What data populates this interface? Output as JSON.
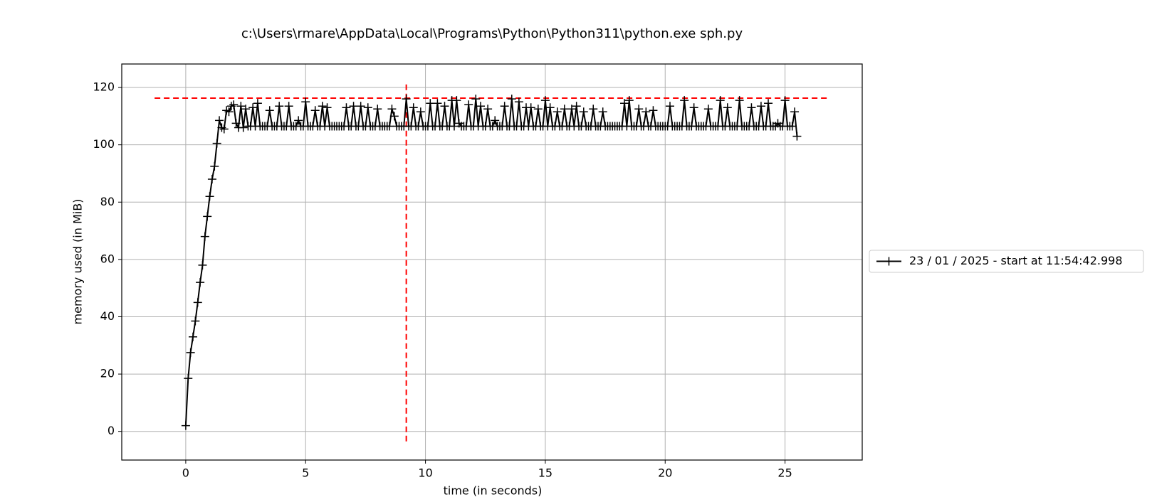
{
  "chart_data": {
    "type": "line",
    "title": "c:\\Users\\rmare\\AppData\\Local\\Programs\\Python\\Python311\\python.exe sph.py",
    "xlabel": "time (in seconds)",
    "ylabel": "memory used (in MiB)",
    "x": [
      0,
      0.1,
      0.2,
      0.3,
      0.4,
      0.5,
      0.6,
      0.7,
      0.8,
      0.9,
      1,
      1.1,
      1.2,
      1.3,
      1.4,
      1.5,
      1.6,
      1.7,
      1.8,
      1.9,
      2,
      2.1,
      2.2,
      2.3,
      2.4,
      2.5,
      2.6,
      2.7,
      2.8,
      2.9,
      3,
      3.1,
      3.2,
      3.3,
      3.4,
      3.5,
      3.6,
      3.7,
      3.8,
      3.9,
      4,
      4.1,
      4.2,
      4.3,
      4.4,
      4.5,
      4.6,
      4.7,
      4.8,
      4.9,
      5,
      5.1,
      5.2,
      5.3,
      5.4,
      5.5,
      5.6,
      5.7,
      5.8,
      5.9,
      6,
      6.1,
      6.2,
      6.3,
      6.4,
      6.5,
      6.6,
      6.7,
      6.8,
      6.9,
      7,
      7.1,
      7.2,
      7.3,
      7.4,
      7.5,
      7.6,
      7.7,
      7.8,
      7.9,
      8,
      8.1,
      8.2,
      8.3,
      8.4,
      8.5,
      8.6,
      8.7,
      8.8,
      8.9,
      9,
      9.1,
      9.2,
      9.3,
      9.4,
      9.5,
      9.6,
      9.7,
      9.8,
      9.9,
      10,
      10.1,
      10.2,
      10.3,
      10.4,
      10.5,
      10.6,
      10.7,
      10.8,
      10.9,
      11,
      11.1,
      11.2,
      11.3,
      11.4,
      11.5,
      11.6,
      11.7,
      11.8,
      11.9,
      12,
      12.1,
      12.2,
      12.3,
      12.4,
      12.5,
      12.6,
      12.7,
      12.8,
      12.9,
      13,
      13.1,
      13.2,
      13.3,
      13.4,
      13.5,
      13.6,
      13.7,
      13.8,
      13.9,
      14,
      14.1,
      14.2,
      14.3,
      14.4,
      14.5,
      14.6,
      14.7,
      14.8,
      14.9,
      15,
      15.1,
      15.2,
      15.3,
      15.4,
      15.5,
      15.6,
      15.7,
      15.8,
      15.9,
      16,
      16.1,
      16.2,
      16.3,
      16.4,
      16.5,
      16.6,
      16.7,
      16.8,
      16.9,
      17,
      17.1,
      17.2,
      17.3,
      17.4,
      17.5,
      17.6,
      17.7,
      17.8,
      17.9,
      18,
      18.1,
      18.2,
      18.3,
      18.4,
      18.5,
      18.6,
      18.7,
      18.8,
      18.9,
      19,
      19.1,
      19.2,
      19.3,
      19.4,
      19.5,
      19.6,
      19.7,
      19.8,
      19.9,
      20,
      20.1,
      20.2,
      20.3,
      20.4,
      20.5,
      20.6,
      20.7,
      20.8,
      20.9,
      21,
      21.1,
      21.2,
      21.3,
      21.4,
      21.5,
      21.6,
      21.7,
      21.8,
      21.9,
      22,
      22.1,
      22.2,
      22.3,
      22.4,
      22.5,
      22.6,
      22.7,
      22.8,
      22.9,
      23,
      23.1,
      23.2,
      23.3,
      23.4,
      23.5,
      23.6,
      23.7,
      23.8,
      23.9,
      24,
      24.1,
      24.2,
      24.3,
      24.4,
      24.5,
      24.6,
      24.7,
      24.8,
      24.9,
      25,
      25.1,
      25.2,
      25.3,
      25.4,
      25.5
    ],
    "series": [
      {
        "name": "23 / 01 / 2025 - start at 11:54:42.998",
        "color": "#000000",
        "marker": "+",
        "values": [
          2,
          18.5,
          27.5,
          33,
          38.5,
          45,
          52,
          58,
          68,
          75,
          82,
          88,
          92.5,
          100.5,
          108.5,
          106,
          105.5,
          112,
          111.5,
          113.5,
          114,
          107.5,
          106,
          113.5,
          106,
          112.5,
          106.5,
          106.5,
          113,
          106.5,
          114.5,
          106.5,
          106.5,
          106.5,
          106.5,
          112,
          106.5,
          106.5,
          106.5,
          113.5,
          106.5,
          106.5,
          106.5,
          113.5,
          106.5,
          106.5,
          106.5,
          108.5,
          106.5,
          106.5,
          115,
          106.5,
          106.5,
          106.5,
          112,
          106.5,
          106.5,
          113.5,
          106.5,
          113,
          106.5,
          106.5,
          106.5,
          106.5,
          106.5,
          106.5,
          106.5,
          113,
          106.5,
          106.5,
          113.5,
          106.5,
          106.5,
          113.5,
          106.5,
          106.5,
          113,
          106.5,
          106.5,
          106.5,
          112.5,
          106.5,
          106.5,
          106.5,
          106.5,
          106.5,
          112.5,
          110,
          106.5,
          106.5,
          106.5,
          106.5,
          116,
          106.5,
          106.5,
          113,
          106.5,
          106.5,
          111.5,
          106.5,
          106.5,
          106.5,
          114.5,
          106.5,
          106.5,
          114.5,
          106.5,
          106.5,
          113.5,
          106.5,
          106.5,
          115.5,
          106.5,
          115.5,
          107.5,
          106.5,
          106.5,
          106.5,
          114,
          106.5,
          106.5,
          116,
          106.5,
          113.5,
          106.5,
          106.5,
          112.5,
          106.5,
          106.5,
          108.5,
          106.5,
          106.5,
          106.5,
          113.5,
          106.5,
          106.5,
          116,
          106.5,
          106.5,
          115,
          106.5,
          106.5,
          113,
          106.5,
          113,
          106.5,
          106.5,
          112.5,
          106.5,
          106.5,
          115.5,
          106.5,
          113,
          106.5,
          106.5,
          111.5,
          106.5,
          106.5,
          112.5,
          106.5,
          106.5,
          112.5,
          106.5,
          113.5,
          106.5,
          106.5,
          111.5,
          106.5,
          106.5,
          106.5,
          112.5,
          106.5,
          106.5,
          106.5,
          111.5,
          106.5,
          106.5,
          106.5,
          106.5,
          106.5,
          106.5,
          106.5,
          106.5,
          114.5,
          106.5,
          115.5,
          106.5,
          106.5,
          106.5,
          112.5,
          106.5,
          106.5,
          111.5,
          106.5,
          106.5,
          112,
          106.5,
          106.5,
          106.5,
          106.5,
          106.5,
          106.5,
          113.5,
          106.5,
          106.5,
          106.5,
          106.5,
          106.5,
          115.5,
          106.5,
          106.5,
          106.5,
          113,
          106.5,
          106.5,
          106.5,
          106.5,
          106.5,
          112.5,
          106.5,
          106.5,
          106.5,
          106.5,
          115.5,
          106.5,
          106.5,
          113,
          106.5,
          106.5,
          106.5,
          106.5,
          115.5,
          106.5,
          106.5,
          106.5,
          106.5,
          113,
          106.5,
          106.5,
          106.5,
          113.5,
          106.5,
          106.5,
          114.5,
          106.5,
          106.5,
          106.5,
          107.5,
          106.5,
          106.5,
          115.5,
          106.5,
          106.5,
          106.5,
          111.5,
          103
        ]
      }
    ],
    "hline": {
      "y": 116.3,
      "xmin": -1.3,
      "xmax": 26.8,
      "color": "#ff0000"
    },
    "vline": {
      "x": 9.2,
      "ymin": -3.5,
      "ymax": 122,
      "color": "#ff0000"
    },
    "xlim": [
      -2.67,
      28.22
    ],
    "ylim": [
      -10,
      128.2
    ],
    "xticks": [
      0,
      5,
      10,
      15,
      20,
      25
    ],
    "yticks": [
      0,
      20,
      40,
      60,
      80,
      100,
      120
    ],
    "grid": true,
    "legend": "right"
  }
}
